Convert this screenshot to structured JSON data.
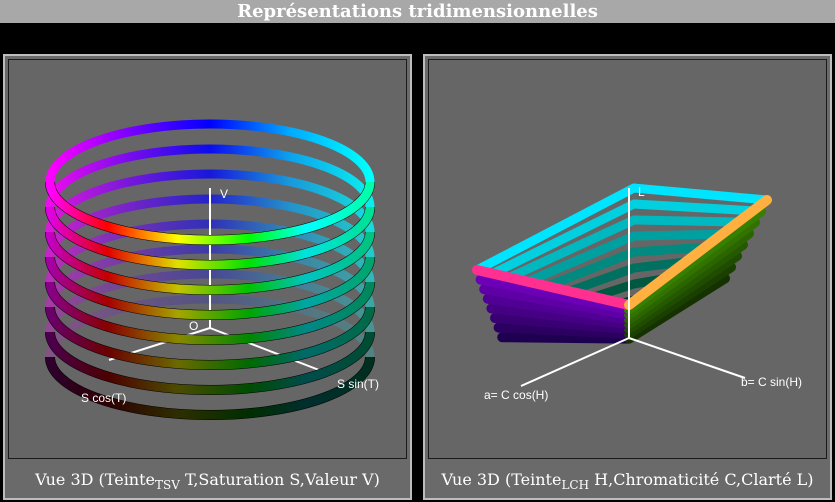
{
  "window": {
    "title": "Représentations tridimensionnelles"
  },
  "panels": [
    {
      "caption_prefix": "Vue 3D (Teinte",
      "caption_sub": "TSV",
      "caption_suffix": " T,Saturation S,Valeur V)",
      "axes": {
        "v": "V",
        "origin": "O",
        "x": "S cos(T)",
        "y": "S sin(T)"
      }
    },
    {
      "caption_prefix": "Vue 3D (Teinte",
      "caption_sub": "LCH",
      "caption_suffix": " H,Chromaticité C,Clarté L)",
      "axes": {
        "l": "L",
        "x": "a= C cos(H)",
        "y": "b= C sin(H)"
      }
    }
  ]
}
